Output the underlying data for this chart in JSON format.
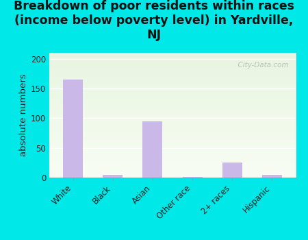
{
  "categories": [
    "White",
    "Black",
    "Asian",
    "Other race",
    "2+ races",
    "Hispanic"
  ],
  "values": [
    165,
    5,
    95,
    1,
    25,
    5
  ],
  "bar_color": "#c9b8e8",
  "title": "Breakdown of poor residents within races\n(income below poverty level) in Yardville,\nNJ",
  "ylabel": "absolute numbers",
  "ylim": [
    0,
    210
  ],
  "yticks": [
    0,
    50,
    100,
    150,
    200
  ],
  "background_color": "#00e8e8",
  "plot_bg_top": "#e8f5e0",
  "plot_bg_bottom": "#f8fdf4",
  "title_fontsize": 12.5,
  "axis_fontsize": 9.5,
  "tick_fontsize": 8.5,
  "watermark": "  City-Data.com"
}
